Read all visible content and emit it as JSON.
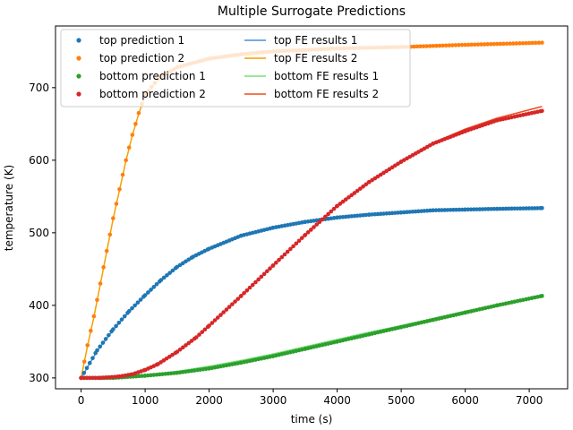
{
  "chart_data": {
    "type": "line",
    "title": "Multiple Surrogate Predictions",
    "xlabel": "time (s)",
    "ylabel": "temperature (K)",
    "xlim": [
      -400,
      7600
    ],
    "ylim": [
      285,
      785
    ],
    "xticks": [
      0,
      1000,
      2000,
      3000,
      4000,
      5000,
      6000,
      7000
    ],
    "yticks": [
      300,
      400,
      500,
      600,
      700
    ],
    "grid": false,
    "legend_placement": "top-left",
    "legend_columns": 2,
    "series": [
      {
        "name": "top prediction 1",
        "kind": "scatter",
        "color": "#1f77b4",
        "x": [
          0,
          250,
          500,
          750,
          1000,
          1250,
          1500,
          1750,
          2000,
          2500,
          3000,
          3500,
          4000,
          4500,
          5000,
          5500,
          6000,
          6500,
          7200
        ],
        "y": [
          300,
          338,
          367,
          392,
          414,
          435,
          453,
          467,
          478,
          496,
          507,
          515,
          521,
          525,
          528,
          531,
          532,
          533,
          534
        ]
      },
      {
        "name": "top prediction 2",
        "kind": "scatter",
        "color": "#ff7f0e",
        "x": [
          0,
          100,
          200,
          300,
          400,
          500,
          600,
          700,
          800,
          900,
          1000,
          1200,
          1500,
          2000,
          2500,
          3000,
          3500,
          4000,
          5000,
          6000,
          7200
        ],
        "y": [
          300,
          345,
          385,
          430,
          475,
          520,
          560,
          600,
          635,
          665,
          690,
          712,
          728,
          740,
          746,
          750,
          752,
          754,
          756,
          759,
          762
        ]
      },
      {
        "name": "bottom prediction 1",
        "kind": "scatter",
        "color": "#2ca02c",
        "x": [
          0,
          500,
          1000,
          1500,
          2000,
          2500,
          3000,
          3500,
          4000,
          4500,
          5000,
          5500,
          6000,
          6500,
          7200
        ],
        "y": [
          300,
          300,
          303,
          307,
          313,
          321,
          330,
          340,
          350,
          360,
          370,
          380,
          390,
          400,
          413
        ]
      },
      {
        "name": "bottom prediction 2",
        "kind": "scatter",
        "color": "#d62728",
        "x": [
          0,
          300,
          600,
          800,
          1000,
          1200,
          1500,
          1800,
          2000,
          2500,
          3000,
          3500,
          4000,
          4500,
          5000,
          5500,
          6000,
          6500,
          7200
        ],
        "y": [
          300,
          300,
          302,
          305,
          311,
          319,
          336,
          356,
          372,
          413,
          455,
          497,
          537,
          570,
          598,
          623,
          640,
          655,
          668
        ]
      },
      {
        "name": "top FE results 1",
        "kind": "line",
        "color": "#4a90d9",
        "x": [
          0,
          250,
          500,
          750,
          1000,
          1250,
          1500,
          1750,
          2000,
          2500,
          3000,
          3500,
          4000,
          4500,
          5000,
          5500,
          6000,
          6500,
          7200
        ],
        "y": [
          300,
          337,
          366,
          391,
          413,
          434,
          452,
          466,
          477,
          495,
          506,
          514,
          520,
          524,
          527,
          530,
          531,
          532,
          533
        ]
      },
      {
        "name": "top FE results 2",
        "kind": "line",
        "color": "#f5a000",
        "x": [
          0,
          100,
          200,
          300,
          400,
          500,
          600,
          700,
          800,
          900,
          1000,
          1200,
          1500,
          2000,
          2500,
          3000,
          3500,
          4000,
          5000,
          6000,
          7200
        ],
        "y": [
          300,
          344,
          384,
          429,
          474,
          519,
          559,
          599,
          634,
          664,
          689,
          711,
          727,
          739,
          745,
          749,
          751,
          753,
          755,
          758,
          761
        ]
      },
      {
        "name": "bottom FE results 1",
        "kind": "line",
        "color": "#77e077",
        "x": [
          0,
          500,
          1000,
          1500,
          2000,
          2500,
          3000,
          3500,
          4000,
          4500,
          5000,
          5500,
          6000,
          6500,
          7200
        ],
        "y": [
          300,
          301,
          304,
          309,
          316,
          324,
          333,
          343,
          353,
          363,
          372,
          382,
          392,
          401,
          412
        ]
      },
      {
        "name": "bottom FE results 2",
        "kind": "line",
        "color": "#f04a1a",
        "x": [
          0,
          300,
          600,
          800,
          1000,
          1200,
          1500,
          1800,
          2000,
          2500,
          3000,
          3500,
          4000,
          4500,
          5000,
          5500,
          6000,
          6500,
          7200
        ],
        "y": [
          300,
          300,
          302,
          305,
          311,
          319,
          336,
          356,
          372,
          413,
          455,
          497,
          537,
          570,
          598,
          624,
          643,
          658,
          674
        ]
      }
    ]
  }
}
